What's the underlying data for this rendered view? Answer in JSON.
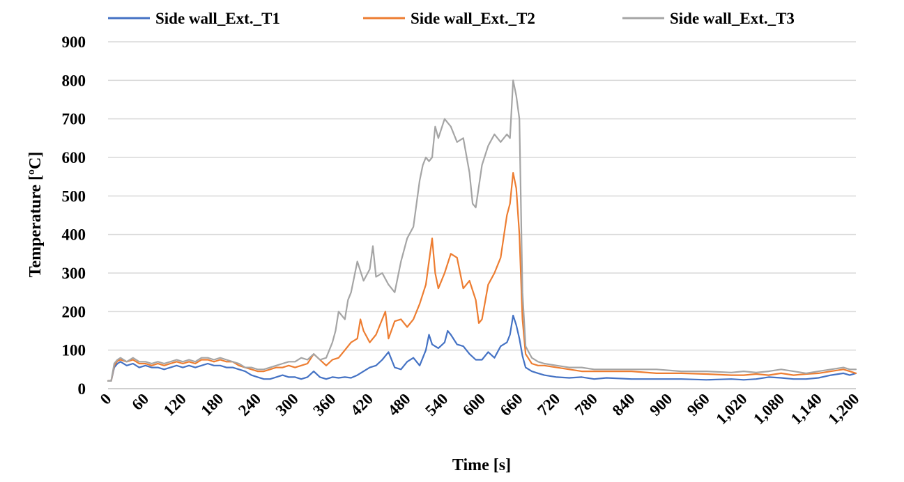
{
  "chart_data": {
    "type": "line",
    "title": "",
    "xlabel": "Time [s]",
    "ylabel": "Temperature [ºC]",
    "xlim": [
      0,
      1200
    ],
    "ylim": [
      0,
      900
    ],
    "x_ticks": [
      "0",
      "60",
      "120",
      "180",
      "240",
      "300",
      "360",
      "420",
      "480",
      "540",
      "600",
      "660",
      "720",
      "780",
      "840",
      "900",
      "960",
      "1,020",
      "1,080",
      "1,140",
      "1,200"
    ],
    "y_ticks": [
      "0",
      "100",
      "200",
      "300",
      "400",
      "500",
      "600",
      "700",
      "800",
      "900"
    ],
    "grid": "horizontal",
    "legend_position": "top",
    "series": [
      {
        "name": "Side wall_Ext._T1",
        "color": "#4472c4",
        "x": [
          0,
          5,
          10,
          15,
          20,
          30,
          40,
          50,
          60,
          70,
          80,
          90,
          100,
          110,
          120,
          130,
          140,
          150,
          160,
          170,
          180,
          190,
          200,
          210,
          220,
          230,
          240,
          250,
          260,
          270,
          280,
          290,
          300,
          310,
          320,
          330,
          340,
          350,
          360,
          370,
          380,
          390,
          400,
          410,
          420,
          430,
          440,
          450,
          460,
          470,
          480,
          490,
          500,
          505,
          510,
          515,
          520,
          530,
          540,
          545,
          550,
          560,
          570,
          580,
          590,
          600,
          610,
          620,
          630,
          640,
          645,
          650,
          655,
          660,
          665,
          670,
          680,
          690,
          700,
          720,
          740,
          760,
          780,
          800,
          840,
          880,
          920,
          960,
          1000,
          1020,
          1040,
          1060,
          1080,
          1100,
          1120,
          1140,
          1160,
          1180,
          1190,
          1200
        ],
        "y": [
          20,
          20,
          55,
          65,
          70,
          60,
          65,
          55,
          60,
          55,
          55,
          50,
          55,
          60,
          55,
          60,
          55,
          60,
          65,
          60,
          60,
          55,
          55,
          50,
          45,
          35,
          30,
          25,
          25,
          30,
          35,
          30,
          30,
          25,
          30,
          45,
          30,
          25,
          30,
          28,
          30,
          28,
          35,
          45,
          55,
          60,
          75,
          95,
          55,
          50,
          70,
          80,
          60,
          80,
          100,
          140,
          115,
          105,
          120,
          150,
          140,
          115,
          110,
          90,
          75,
          75,
          95,
          80,
          110,
          120,
          140,
          190,
          165,
          130,
          85,
          55,
          45,
          40,
          35,
          30,
          28,
          30,
          25,
          28,
          25,
          25,
          25,
          23,
          25,
          23,
          25,
          30,
          28,
          25,
          25,
          28,
          35,
          40,
          35,
          40
        ]
      },
      {
        "name": "Side wall_Ext._T2",
        "color": "#ed7d31",
        "x": [
          0,
          5,
          10,
          15,
          20,
          30,
          40,
          50,
          60,
          70,
          80,
          90,
          100,
          110,
          120,
          130,
          140,
          150,
          160,
          170,
          180,
          190,
          200,
          210,
          220,
          230,
          240,
          250,
          260,
          270,
          280,
          290,
          300,
          310,
          320,
          330,
          340,
          350,
          360,
          370,
          380,
          390,
          400,
          405,
          410,
          420,
          430,
          440,
          445,
          450,
          460,
          470,
          480,
          490,
          500,
          510,
          520,
          525,
          530,
          540,
          550,
          560,
          570,
          580,
          590,
          595,
          600,
          610,
          620,
          630,
          640,
          645,
          650,
          655,
          660,
          665,
          670,
          680,
          690,
          700,
          720,
          740,
          760,
          780,
          800,
          840,
          880,
          920,
          960,
          1000,
          1020,
          1040,
          1060,
          1080,
          1100,
          1120,
          1140,
          1160,
          1180,
          1190,
          1200
        ],
        "y": [
          20,
          20,
          60,
          72,
          75,
          70,
          75,
          65,
          65,
          60,
          65,
          60,
          65,
          70,
          65,
          70,
          65,
          75,
          75,
          70,
          75,
          70,
          70,
          60,
          55,
          50,
          45,
          45,
          50,
          55,
          55,
          60,
          55,
          60,
          65,
          90,
          75,
          60,
          75,
          80,
          100,
          120,
          130,
          180,
          150,
          120,
          140,
          180,
          200,
          130,
          175,
          180,
          160,
          180,
          220,
          270,
          390,
          300,
          260,
          300,
          350,
          340,
          260,
          280,
          230,
          170,
          180,
          270,
          300,
          340,
          450,
          480,
          560,
          520,
          400,
          180,
          90,
          65,
          60,
          60,
          55,
          50,
          45,
          45,
          45,
          45,
          40,
          40,
          38,
          35,
          35,
          38,
          35,
          40,
          35,
          38,
          40,
          45,
          50,
          45,
          40
        ]
      },
      {
        "name": "Side wall_Ext._T3",
        "color": "#a5a5a5",
        "x": [
          0,
          5,
          10,
          15,
          20,
          30,
          40,
          50,
          60,
          70,
          80,
          90,
          100,
          110,
          120,
          130,
          140,
          150,
          160,
          170,
          180,
          190,
          200,
          210,
          220,
          230,
          240,
          250,
          260,
          270,
          280,
          290,
          300,
          310,
          320,
          330,
          340,
          350,
          360,
          365,
          370,
          380,
          385,
          390,
          400,
          410,
          420,
          425,
          430,
          440,
          450,
          460,
          470,
          480,
          490,
          500,
          505,
          510,
          515,
          520,
          525,
          530,
          540,
          545,
          550,
          560,
          570,
          580,
          585,
          590,
          600,
          610,
          620,
          630,
          640,
          645,
          650,
          655,
          660,
          665,
          670,
          680,
          690,
          700,
          720,
          740,
          760,
          780,
          800,
          840,
          880,
          920,
          960,
          1000,
          1020,
          1040,
          1060,
          1080,
          1100,
          1120,
          1140,
          1160,
          1180,
          1190,
          1200
        ],
        "y": [
          20,
          20,
          65,
          75,
          80,
          70,
          80,
          70,
          70,
          65,
          70,
          65,
          70,
          75,
          70,
          75,
          70,
          80,
          80,
          75,
          80,
          75,
          70,
          65,
          55,
          55,
          50,
          50,
          55,
          60,
          65,
          70,
          70,
          80,
          75,
          90,
          75,
          80,
          120,
          150,
          200,
          180,
          230,
          250,
          330,
          280,
          310,
          370,
          290,
          300,
          270,
          250,
          330,
          390,
          420,
          540,
          580,
          600,
          590,
          600,
          680,
          650,
          700,
          690,
          680,
          640,
          650,
          560,
          480,
          470,
          580,
          630,
          660,
          640,
          660,
          650,
          800,
          760,
          700,
          250,
          110,
          80,
          70,
          65,
          60,
          55,
          55,
          50,
          50,
          50,
          50,
          45,
          45,
          42,
          45,
          42,
          45,
          50,
          45,
          40,
          45,
          50,
          55,
          50,
          50
        ]
      }
    ]
  }
}
